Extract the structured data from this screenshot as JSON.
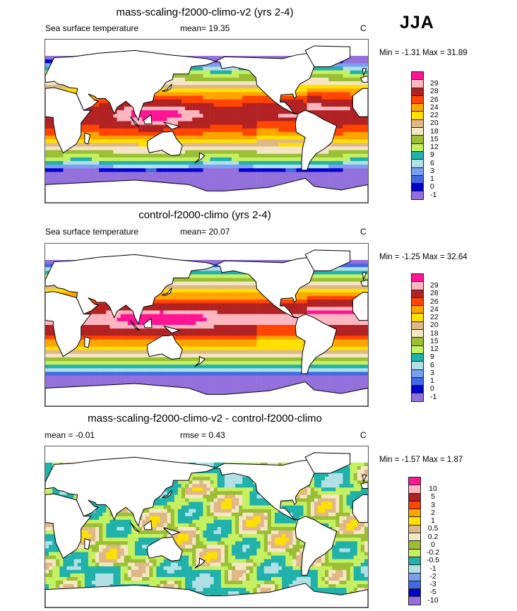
{
  "season": "JJA",
  "colors": [
    "#ff1493",
    "#ffb6c1",
    "#b22222",
    "#ff4500",
    "#ffa500",
    "#ffe000",
    "#deb887",
    "#f5e6c4",
    "#9abf32",
    "#c5f061",
    "#20b2aa",
    "#b0e0e6",
    "#7a9ff0",
    "#4169e1",
    "#0000cd",
    "#9370db"
  ],
  "panels": [
    {
      "title": "mass-scaling-f2000-climo-v2 (yrs 2-4)",
      "left": "Sea surface temperature",
      "middle": "mean=  19.35",
      "units": "C",
      "minmax": "Min =  -1.31 Max =  31.89",
      "levels": [
        "29",
        "28",
        "26",
        "24",
        "22",
        "20",
        "18",
        "15",
        "12",
        "9",
        "6",
        "3",
        "1",
        "0",
        "-1"
      ]
    },
    {
      "title": "control-f2000-climo (yrs 2-4)",
      "left": "Sea surface temperature",
      "middle": "mean=  20.07",
      "units": "C",
      "minmax": "Min =  -1.25 Max =  32.64",
      "levels": [
        "29",
        "28",
        "26",
        "24",
        "22",
        "20",
        "18",
        "15",
        "12",
        "9",
        "6",
        "3",
        "1",
        "0",
        "-1"
      ]
    },
    {
      "title": "mass-scaling-f2000-climo-v2 - control-f2000-climo",
      "left": "mean =  -0.01",
      "middle": "rmse =  0.43",
      "units": "C",
      "minmax": "Min =  -1.57 Max =   1.87",
      "levels": [
        "10",
        "5",
        "3",
        "2",
        "1",
        "0.5",
        "0.2",
        "0",
        "-0.2",
        "-0.5",
        "-1",
        "-2",
        "-3",
        "-5",
        "-10"
      ]
    }
  ]
}
